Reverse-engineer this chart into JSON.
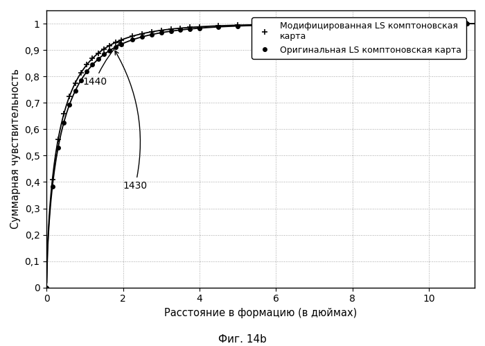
{
  "title": "Фиг. 14b",
  "xlabel": "Расстояние в формацию (в дюймах)",
  "ylabel": "Суммарная чувствительность",
  "legend1": "Модифицированная LS комптоновская\nкарта",
  "legend2": "Оригинальная LS комптоновская карта",
  "xlim": [
    0,
    11.2
  ],
  "ylim": [
    0,
    1.05
  ],
  "yticks": [
    0,
    0.1,
    0.2,
    0.3,
    0.4,
    0.5,
    0.6,
    0.7,
    0.8,
    0.9,
    1
  ],
  "xticks": [
    0,
    2,
    4,
    6,
    8,
    10
  ],
  "annotation1": "1440",
  "annotation2": "1430",
  "line_color": "#000000",
  "background_color": "#ffffff",
  "grid_color": "#999999",
  "figwidth": 7.0,
  "figheight": 4.99,
  "dpi": 100
}
